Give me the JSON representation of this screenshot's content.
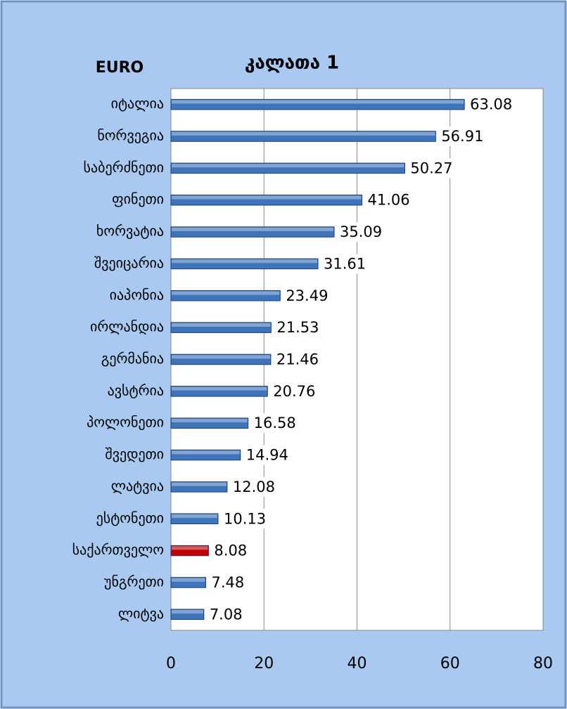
{
  "chart_data": {
    "type": "barh",
    "title": "კალათა 1",
    "unit_label": "EURO",
    "categories": [
      "იტალია",
      "ნორვეგია",
      "საბერძნეთი",
      "ფინეთი",
      "ხორვატია",
      "შვეიცარია",
      "იაპონია",
      "ირლანდია",
      "გერმანია",
      "ავსტრია",
      "პოლონეთი",
      "შვედეთი",
      "ლატვია",
      "ესტონეთი",
      "საქართველო",
      "უნგრეთი",
      "ლიტვა"
    ],
    "values": [
      63.08,
      56.91,
      50.27,
      41.06,
      35.09,
      31.61,
      23.49,
      21.53,
      21.46,
      20.76,
      16.58,
      14.94,
      12.08,
      10.13,
      8.08,
      7.48,
      7.08
    ],
    "colors": [
      "#3f74bb",
      "#3f74bb",
      "#3f74bb",
      "#3f74bb",
      "#3f74bb",
      "#3f74bb",
      "#3f74bb",
      "#3f74bb",
      "#3f74bb",
      "#3f74bb",
      "#3f74bb",
      "#3f74bb",
      "#3f74bb",
      "#3f74bb",
      "#c00000",
      "#3f74bb",
      "#3f74bb"
    ],
    "xlim": [
      0,
      80
    ],
    "xticks": [
      0,
      20,
      40,
      60,
      80
    ],
    "grid": true
  }
}
